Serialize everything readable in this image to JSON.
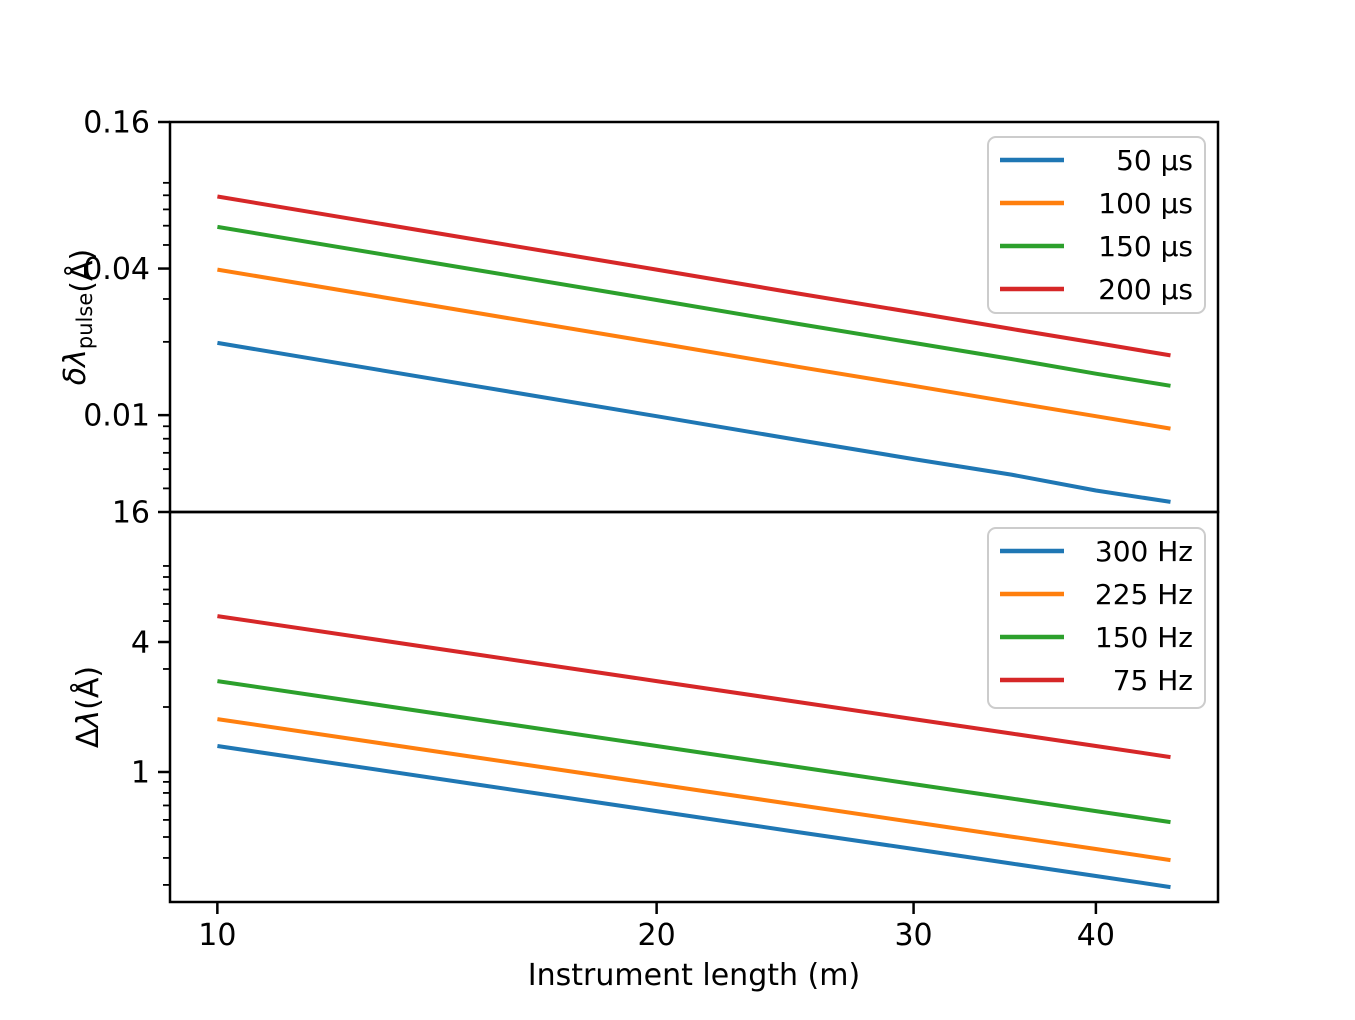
{
  "figure": {
    "background": "#ffffff",
    "spine_color": "#000000",
    "legend_edge_color": "#cccccc",
    "legend_face_color": "#ffffff"
  },
  "xaxis": {
    "label": "Instrument length (m)",
    "scale": "log",
    "lim": [
      9.28,
      48.5
    ],
    "ticks": [
      {
        "value": 10,
        "label": "10"
      },
      {
        "value": 20,
        "label": "20"
      },
      {
        "value": 30,
        "label": "30"
      },
      {
        "value": 40,
        "label": "40"
      }
    ]
  },
  "chart_data": [
    {
      "type": "line",
      "name": "pulse-wavelength-resolution",
      "title": "",
      "xlabel": "Instrument length (m)",
      "ylabel": "δλ_pulse(Å)",
      "ylabel_parts": [
        {
          "text": "δλ",
          "italic": true
        },
        {
          "text": "pulse",
          "sub": true
        },
        {
          "text": "(Å)"
        }
      ],
      "xscale": "log",
      "yscale": "log",
      "xlim": [
        9.28,
        48.5
      ],
      "ylim": [
        0.004,
        0.16
      ],
      "grid": false,
      "legend_position": "upper right",
      "yticks_major": [
        {
          "value": 0.16,
          "label": "0.16"
        },
        {
          "value": 0.04,
          "label": "0.04"
        },
        {
          "value": 0.01,
          "label": "0.01"
        }
      ],
      "yticks_minor": [
        0.09,
        0.08,
        0.07,
        0.06,
        0.05,
        0.03,
        0.02,
        0.009,
        0.008,
        0.007,
        0.006,
        0.005
      ],
      "x": [
        10,
        15,
        20,
        25,
        30,
        35,
        40,
        45
      ],
      "series": [
        {
          "name": "50 µs",
          "color": "#1f77b4",
          "values": [
            0.0198,
            0.0132,
            0.0099,
            0.0079,
            0.0066,
            0.0057,
            0.0049,
            0.0044
          ]
        },
        {
          "name": "100 µs",
          "color": "#ff7f0e",
          "values": [
            0.0396,
            0.0264,
            0.0198,
            0.0158,
            0.0132,
            0.0113,
            0.0099,
            0.0088
          ]
        },
        {
          "name": "150 µs",
          "color": "#2ca02c",
          "values": [
            0.0593,
            0.0396,
            0.0297,
            0.0237,
            0.0198,
            0.017,
            0.0148,
            0.0132
          ]
        },
        {
          "name": "200 µs",
          "color": "#d62728",
          "values": [
            0.0791,
            0.0527,
            0.0396,
            0.0316,
            0.0264,
            0.0226,
            0.0198,
            0.0176
          ]
        }
      ]
    },
    {
      "type": "line",
      "name": "wavelength-band",
      "title": "",
      "xlabel": "Instrument length (m)",
      "ylabel": "Δλ(Å)",
      "ylabel_parts": [
        {
          "text": "Δ"
        },
        {
          "text": "λ",
          "italic": true
        },
        {
          "text": "(Å)"
        }
      ],
      "xscale": "log",
      "yscale": "log",
      "xlim": [
        9.28,
        48.5
      ],
      "ylim": [
        0.25,
        16
      ],
      "grid": false,
      "legend_position": "upper right",
      "yticks_major": [
        {
          "value": 16,
          "label": "16"
        },
        {
          "value": 4,
          "label": "4"
        },
        {
          "value": 1,
          "label": "1"
        }
      ],
      "yticks_minor": [
        9,
        8,
        7,
        6,
        5,
        3,
        2,
        0.9,
        0.8,
        0.7,
        0.6,
        0.5,
        0.4,
        0.3
      ],
      "x": [
        10,
        15,
        20,
        25,
        30,
        35,
        40,
        45
      ],
      "series": [
        {
          "name": "300 Hz",
          "color": "#1f77b4",
          "values": [
            1.319,
            0.879,
            0.659,
            0.527,
            0.44,
            0.377,
            0.33,
            0.293
          ]
        },
        {
          "name": "225 Hz",
          "color": "#ff7f0e",
          "values": [
            1.758,
            1.172,
            0.879,
            0.703,
            0.586,
            0.502,
            0.44,
            0.391
          ]
        },
        {
          "name": "150 Hz",
          "color": "#2ca02c",
          "values": [
            2.637,
            1.758,
            1.319,
            1.055,
            0.879,
            0.754,
            0.659,
            0.586
          ]
        },
        {
          "name": "75 Hz",
          "color": "#d62728",
          "values": [
            5.275,
            3.517,
            2.637,
            2.11,
            1.758,
            1.507,
            1.319,
            1.172
          ]
        }
      ]
    }
  ]
}
